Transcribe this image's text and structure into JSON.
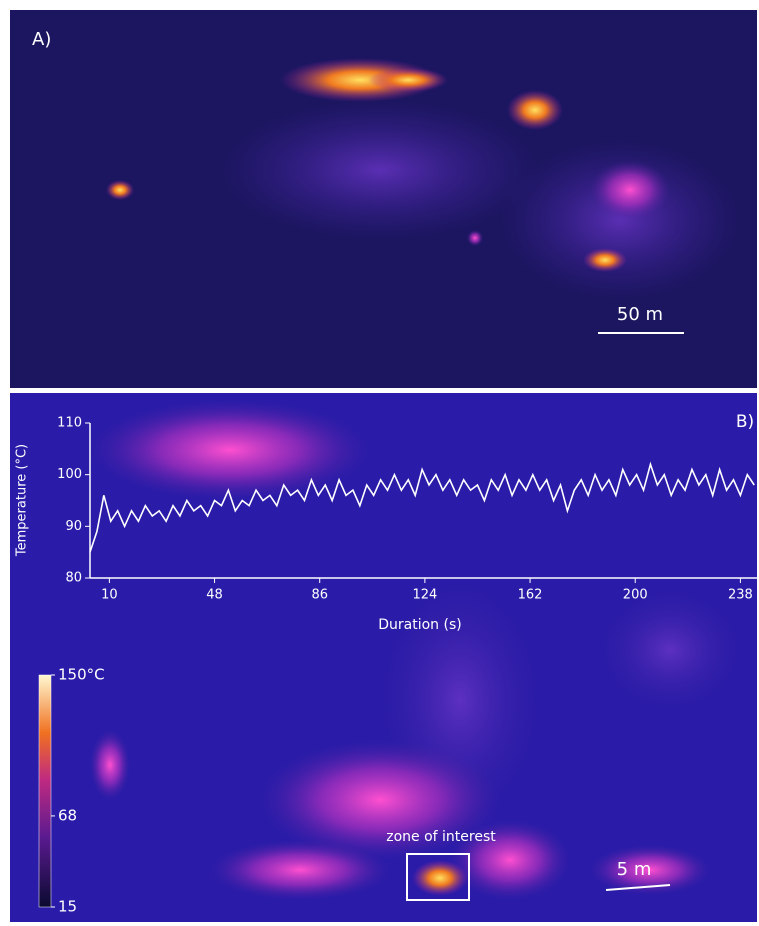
{
  "panel_a": {
    "label": "A)",
    "scale_bar": "50 m"
  },
  "chart_data": {
    "type": "line",
    "panel_label": "B)",
    "x_label": "Duration (s)",
    "y_label": "Temperature (°C)",
    "xlim": [
      3,
      244
    ],
    "ylim": [
      80,
      110
    ],
    "xticks": [
      10,
      48,
      86,
      124,
      162,
      200,
      238
    ],
    "yticks": [
      80,
      90,
      100,
      110
    ],
    "series": [
      {
        "color": "#ffffff",
        "x": [
          3,
          5.5,
          8,
          10.5,
          13,
          15.5,
          18,
          20.5,
          23,
          25.5,
          28,
          30.5,
          33,
          35.5,
          38,
          40.5,
          43,
          45.5,
          48,
          50.5,
          53,
          55.5,
          58,
          60.5,
          63,
          65.5,
          68,
          70.5,
          73,
          75.5,
          78,
          80.5,
          83,
          85.5,
          88,
          90.5,
          93,
          95.5,
          98,
          100.5,
          103,
          105.5,
          108,
          110.5,
          113,
          115.5,
          118,
          120.5,
          123,
          125.5,
          128,
          130.5,
          133,
          135.5,
          138,
          140.5,
          143,
          145.5,
          148,
          150.5,
          153,
          155.5,
          158,
          160.5,
          163,
          165.5,
          168,
          170.5,
          173,
          175.5,
          178,
          180.5,
          183,
          185.5,
          188,
          190.5,
          193,
          195.5,
          198,
          200.5,
          203,
          205.5,
          208,
          210.5,
          213,
          215.5,
          218,
          220.5,
          223,
          225.5,
          228,
          230.5,
          233,
          235.5,
          238,
          240.5,
          243
        ],
        "values": [
          85,
          89,
          96,
          91,
          93,
          90,
          93,
          91,
          94,
          92,
          93,
          91,
          94,
          92,
          95,
          93,
          94,
          92,
          95,
          94,
          97,
          93,
          95,
          94,
          97,
          95,
          96,
          94,
          98,
          96,
          97,
          95,
          99,
          96,
          98,
          95,
          99,
          96,
          97,
          94,
          98,
          96,
          99,
          97,
          100,
          97,
          99,
          96,
          101,
          98,
          100,
          97,
          99,
          96,
          99,
          97,
          98,
          95,
          99,
          97,
          100,
          96,
          99,
          97,
          100,
          97,
          99,
          95,
          98,
          93,
          97,
          99,
          96,
          100,
          97,
          99,
          96,
          101,
          98,
          100,
          97,
          102,
          98,
          100,
          96,
          99,
          97,
          101,
          98,
          100,
          96,
          101,
          97,
          99,
          96,
          100,
          98
        ]
      }
    ]
  },
  "colorbar": {
    "lim": [
      15,
      150
    ],
    "ticks": [
      {
        "value": 150,
        "label": "150°C"
      },
      68,
      15
    ]
  },
  "annotations": {
    "zone": "zone of interest",
    "scale_bar": "5 m"
  }
}
